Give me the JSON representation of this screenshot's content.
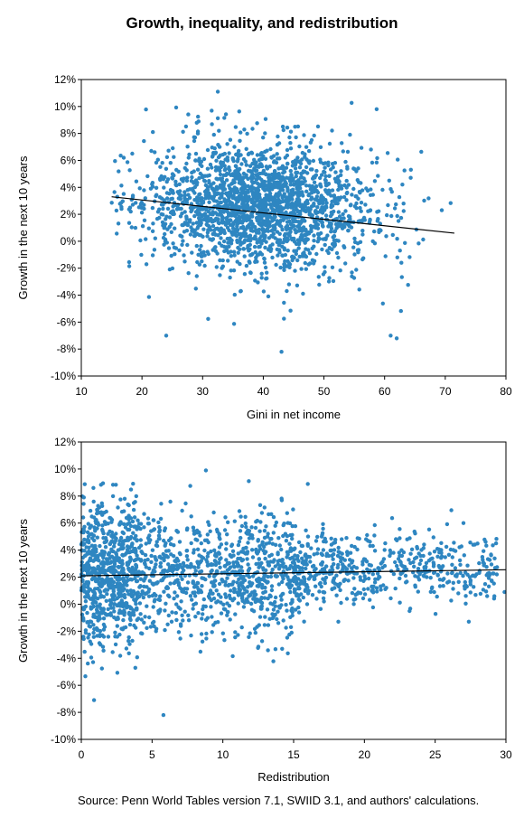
{
  "figure": {
    "title": "Growth, inequality, and redistribution",
    "source": "Source: Penn World Tables version 7.1, SWIID 3.1, and authors' calculations."
  },
  "colors": {
    "points": "#2e86c1",
    "trendline": "#000000",
    "frame": "#000000"
  },
  "chart_data": [
    {
      "type": "scatter",
      "title": "",
      "xlabel": "Gini in net income",
      "ylabel": "Growth in the next 10 years",
      "xlim": [
        10,
        80
      ],
      "ylim": [
        -10,
        12
      ],
      "x_ticks": [
        "10",
        "20",
        "30",
        "40",
        "50",
        "60",
        "70",
        "80"
      ],
      "y_ticks": [
        "-10%",
        "-8%",
        "-6%",
        "-4%",
        "-2%",
        "0%",
        "2%",
        "4%",
        "6%",
        "8%",
        "10%",
        "12%"
      ],
      "grid": false,
      "legend": "none",
      "trendline": {
        "x": [
          15,
          71.5
        ],
        "y": [
          3.3,
          0.6
        ]
      },
      "points_note": "approx. 2000 country-decade observations; Gini mostly 20-65, growth mostly -2% to 6%",
      "notable_points": [
        [
          32.5,
          11.1
        ],
        [
          24,
          -7.0
        ],
        [
          43,
          -8.2
        ],
        [
          61,
          -7.0
        ],
        [
          62,
          -7.2
        ],
        [
          17,
          6.2
        ],
        [
          21.8,
          8.1
        ]
      ]
    },
    {
      "type": "scatter",
      "title": "",
      "xlabel": "Redistribution",
      "ylabel": "Growth in the next 10 years",
      "xlim": [
        0,
        30
      ],
      "ylim": [
        -10,
        12
      ],
      "x_ticks": [
        "0",
        "5",
        "10",
        "15",
        "20",
        "25",
        "30"
      ],
      "y_ticks": [
        "-10%",
        "-8%",
        "-6%",
        "-4%",
        "-2%",
        "0%",
        "2%",
        "4%",
        "6%",
        "8%",
        "10%",
        "12%"
      ],
      "grid": false,
      "legend": "none",
      "trendline": {
        "x": [
          0,
          30
        ],
        "y": [
          2.1,
          2.55
        ]
      },
      "points_note": "approx. 2000 observations; dense near redistribution 0-5, thinning toward 30",
      "notable_points": [
        [
          8.8,
          9.9
        ],
        [
          5.8,
          -8.2
        ],
        [
          0.9,
          -7.1
        ],
        [
          29.9,
          0.9
        ],
        [
          27,
          6.0
        ],
        [
          16,
          8.9
        ]
      ]
    }
  ]
}
